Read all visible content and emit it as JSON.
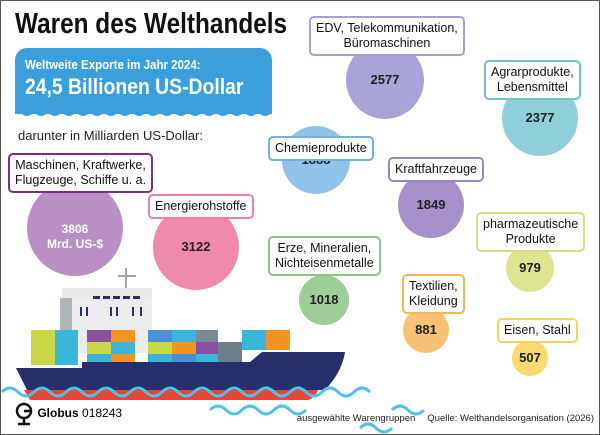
{
  "title": "Waren des Welthandels",
  "banner": {
    "subtitle": "Weltweite Exporte im Jahr 2024:",
    "total": "24,5 Billionen US-Dollar"
  },
  "intro": "darunter in Milliarden US-Dollar:",
  "chart_data": {
    "type": "bubble",
    "unit": "Milliarden US-Dollar",
    "categories": [
      "Maschinen, Kraftwerke, Flugzeuge, Schiffe u. a.",
      "Energierohstoffe",
      "EDV, Telekommunikation, Büromaschinen",
      "Agrarprodukte, Lebensmittel",
      "Chemieprodukte",
      "Kraftfahrzeuge",
      "pharmazeutische Produkte",
      "Erze, Mineralien, Nichteisenmetalle",
      "Textilien, Kleidung",
      "Eisen, Stahl"
    ],
    "labels": [
      "Maschinen, Kraftwerke,\nFlugzeuge, Schiffe u. a.",
      "Energierohstoffe",
      "EDV, Telekommunikation,\nBüromaschinen",
      "Agrarprodukte,\nLebensmittel",
      "Chemieprodukte",
      "Kraftfahrzeuge",
      "pharmazeutische\nProdukte",
      "Erze, Mineralien,\nNichteisenmetalle",
      "Textilien,\nKleidung",
      "Eisen, Stahl"
    ],
    "values": [
      3806,
      3122,
      2577,
      2377,
      1888,
      1849,
      979,
      1018,
      881,
      507
    ],
    "value_labels": [
      "3806\nMrd. US-$",
      "3122",
      "2577",
      "2377",
      "1888",
      "1849",
      "979",
      "1018",
      "881",
      "507"
    ],
    "colors": [
      "#b98fc6",
      "#f08aab",
      "#a9a4d7",
      "#8fcfd9",
      "#90c2ea",
      "#a590c9",
      "#dde590",
      "#9ecd97",
      "#f7c274",
      "#f8dc72"
    ],
    "border_colors": [
      "#7a2f8a",
      "#ee7ea3",
      "#a79ed4",
      "#6cc3d0",
      "#6cb4e6",
      "#9b84c4",
      "#d7de80",
      "#8cc584",
      "#f5b556",
      "#f5d35a"
    ]
  },
  "footer": {
    "brand": "Globus",
    "code": "018243",
    "note": "ausgewählte Warengruppen",
    "source": "Quelle: Welthandelsorganisation (2026)"
  }
}
